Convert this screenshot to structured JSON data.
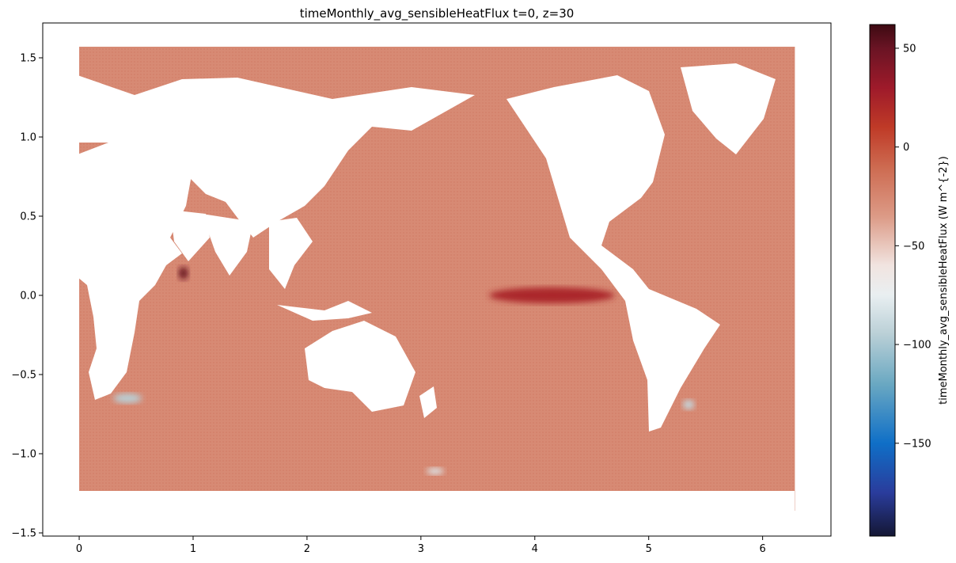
{
  "chart_data": {
    "type": "scatter",
    "title": "timeMonthly_avg_sensibleHeatFlux t=0, z=30",
    "xlabel": "",
    "ylabel": "",
    "xlim": [
      -0.32,
      6.6
    ],
    "ylim": [
      -1.52,
      1.72
    ],
    "xticks": [
      0,
      1,
      2,
      3,
      4,
      5,
      6
    ],
    "xtick_labels": [
      "0",
      "1",
      "2",
      "3",
      "4",
      "5",
      "6"
    ],
    "yticks": [
      1.5,
      1.0,
      0.5,
      0.0,
      -0.5,
      -1.0,
      -1.5
    ],
    "ytick_labels": [
      "1.5",
      "1.0",
      "0.5",
      "0.0",
      "−0.5",
      "−1.0",
      "−1.5"
    ],
    "grid": false,
    "colorbar": {
      "label": "timeMonthly_avg_sensibleHeatFlux (W m^{-2})",
      "range": [
        -197,
        62
      ],
      "ticks": [
        50,
        0,
        -50,
        -100,
        -150
      ],
      "tick_labels": [
        "50",
        "0",
        "−50",
        "−100",
        "−150"
      ],
      "colormap_stops": [
        {
          "value": 62,
          "color": "#3d0a12"
        },
        {
          "value": 50,
          "color": "#6a1424"
        },
        {
          "value": 30,
          "color": "#9e1a2a"
        },
        {
          "value": 10,
          "color": "#bf3a27"
        },
        {
          "value": -10,
          "color": "#cd6a50"
        },
        {
          "value": -35,
          "color": "#dc9a86"
        },
        {
          "value": -60,
          "color": "#f1e4e0"
        },
        {
          "value": -75,
          "color": "#e9eff1"
        },
        {
          "value": -95,
          "color": "#b9cfd6"
        },
        {
          "value": -120,
          "color": "#6aa8c2"
        },
        {
          "value": -150,
          "color": "#0f6fc7"
        },
        {
          "value": -175,
          "color": "#2a3c9c"
        },
        {
          "value": -197,
          "color": "#141734"
        }
      ]
    },
    "data_extent": {
      "x": [
        0,
        6.283
      ],
      "y": [
        -1.36,
        1.57
      ]
    },
    "typical_value": -25,
    "features": [
      {
        "name": "Equatorial Pacific warm band",
        "x": [
          3.6,
          4.7
        ],
        "y": [
          -0.05,
          0.05
        ],
        "value": 22
      },
      {
        "name": "Arabian Sea maximum",
        "x": [
          0.88,
          0.95
        ],
        "y": [
          0.1,
          0.18
        ],
        "value": 50
      },
      {
        "name": "Southern Ocean minimum near Africa",
        "x": [
          0.3,
          0.55
        ],
        "y": [
          -0.68,
          -0.62
        ],
        "value": -95
      },
      {
        "name": "Southern Ocean minimum near Drake Passage",
        "x": [
          5.3,
          5.4
        ],
        "y": [
          -0.72,
          -0.66
        ],
        "value": -90
      },
      {
        "name": "Southern Ocean minimum south of Australia",
        "x": [
          3.05,
          3.2
        ],
        "y": [
          -1.13,
          -1.09
        ],
        "value": -80
      }
    ],
    "land_regions": [
      "Africa",
      "Eurasia",
      "Australia",
      "Americas",
      "Greenland",
      "Antarctica"
    ]
  }
}
